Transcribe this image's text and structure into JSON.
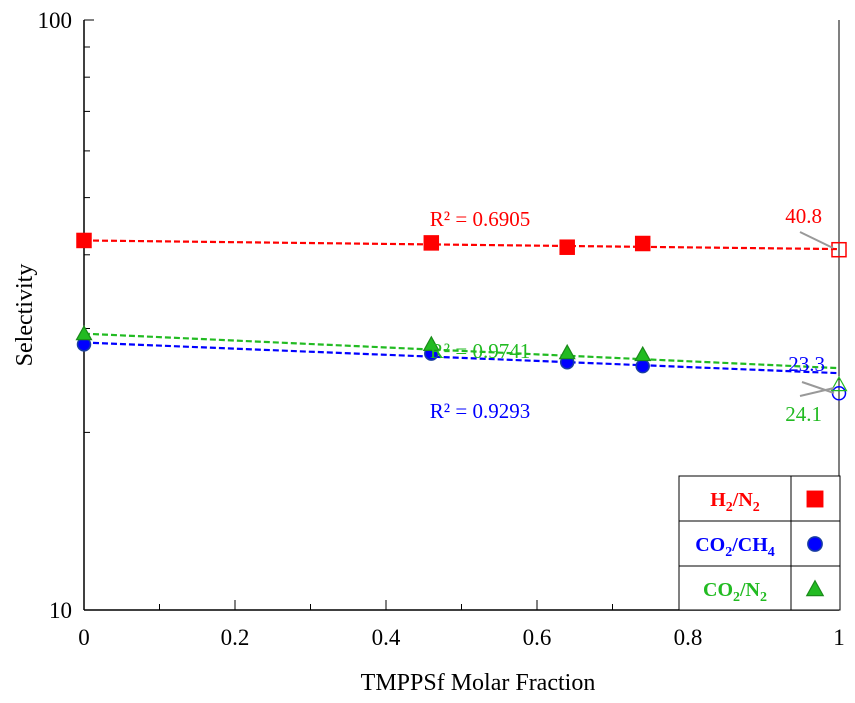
{
  "chart_data": {
    "type": "scatter",
    "title": "",
    "xlabel": "TMPPSf Molar Fraction",
    "ylabel": "Selectivity",
    "xlim": [
      0,
      1
    ],
    "ylim": [
      10,
      100
    ],
    "yscale": "log",
    "x_ticks": [
      "0",
      "0.2",
      "0.4",
      "0.6",
      "0.8",
      "1"
    ],
    "y_ticks": [
      "10",
      "100"
    ],
    "grid": false,
    "legend_position": "bottom-right",
    "series": [
      {
        "name": "H2/N2",
        "name_main": "H",
        "name_sub1": "2",
        "name_mid": "/N",
        "name_sub2": "2",
        "color": "#ff0000",
        "marker": "square",
        "x": [
          0,
          0.46,
          0.64,
          0.74
        ],
        "y": [
          42.3,
          41.9,
          41.2,
          41.8
        ],
        "trendline": {
          "x": [
            0,
            1
          ],
          "y": [
            42.3,
            40.9
          ],
          "r2_label": "R² = 0.6905"
        },
        "predicted": {
          "x": 1,
          "y": 40.8,
          "label": "40.8"
        }
      },
      {
        "name": "CO2/CH4",
        "name_main": "CO",
        "name_sub1": "2",
        "name_mid": "/CH",
        "name_sub2": "4",
        "color": "#0000ff",
        "marker": "circle",
        "x": [
          0,
          0.46,
          0.64,
          0.74
        ],
        "y": [
          28.2,
          27.2,
          26.3,
          25.9
        ],
        "trendline": {
          "x": [
            0,
            1
          ],
          "y": [
            28.4,
            25.2
          ],
          "r2_label": "R² = 0.9293"
        },
        "predicted": {
          "x": 1,
          "y": 23.3,
          "label": "23.3"
        }
      },
      {
        "name": "CO2/N2",
        "name_main": "CO",
        "name_sub1": "2",
        "name_mid": "/N",
        "name_sub2": "2",
        "color": "#22bb22",
        "marker": "triangle",
        "x": [
          0,
          0.46,
          0.64,
          0.74
        ],
        "y": [
          29.4,
          28.2,
          27.3,
          27.1
        ],
        "trendline": {
          "x": [
            0,
            1
          ],
          "y": [
            29.4,
            25.7
          ],
          "r2_label": "R² = 0.9741"
        },
        "predicted": {
          "x": 1,
          "y": 24.1,
          "label": "24.1"
        }
      }
    ]
  }
}
